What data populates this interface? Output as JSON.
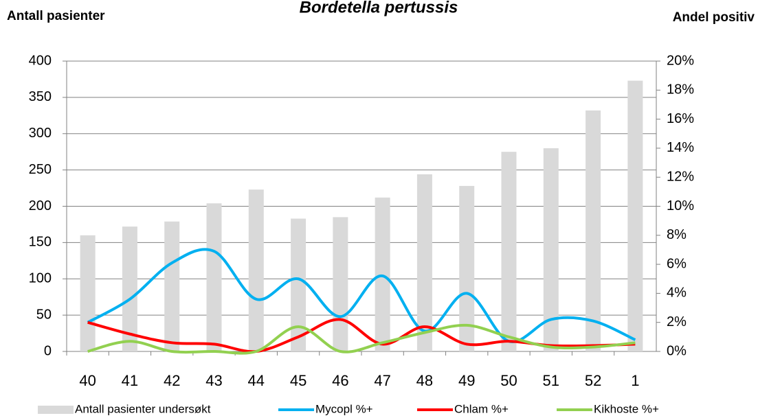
{
  "chart_data": {
    "type": "bar_line",
    "title": "Bordetella pertussis",
    "y_label": "Antall pasienter",
    "y2_label": "Andel positiv",
    "categories": [
      "40",
      "41",
      "42",
      "43",
      "44",
      "45",
      "46",
      "47",
      "48",
      "49",
      "50",
      "51",
      "52",
      "1"
    ],
    "series": [
      {
        "name": "Antall pasienter undersøkt",
        "type": "bar",
        "color": "#d9d9d9",
        "axis": "y",
        "values": [
          160,
          172,
          179,
          204,
          223,
          183,
          185,
          212,
          244,
          228,
          275,
          280,
          332,
          373
        ]
      },
      {
        "name": "Mycopl %+",
        "type": "line",
        "color": "#00b0f0",
        "axis": "y2",
        "values": [
          2.0,
          3.6,
          6.1,
          6.9,
          3.6,
          5.0,
          2.4,
          5.2,
          1.4,
          4.0,
          0.7,
          2.2,
          2.1,
          0.8
        ]
      },
      {
        "name": "Chlam %+",
        "type": "line",
        "color": "#ff0000",
        "axis": "y2",
        "values": [
          2.0,
          1.2,
          0.6,
          0.5,
          0,
          1.0,
          2.2,
          0.5,
          1.7,
          0.5,
          0.7,
          0.4,
          0.4,
          0.5
        ]
      },
      {
        "name": "Kikhoste %+",
        "type": "line",
        "color": "#92d050",
        "axis": "y2",
        "values": [
          0,
          0.7,
          0,
          0,
          0,
          1.7,
          0,
          0.6,
          1.3,
          1.8,
          1.0,
          0.3,
          0.3,
          0.6
        ]
      }
    ],
    "ylim": [
      0,
      400
    ],
    "yticks": [
      0,
      50,
      100,
      150,
      200,
      250,
      300,
      350,
      400
    ],
    "y2lim": [
      0,
      20
    ],
    "y2ticks": [
      {
        "value": 0,
        "label": "0%"
      },
      {
        "value": 2,
        "label": "2%"
      },
      {
        "value": 4,
        "label": "4%"
      },
      {
        "value": 6,
        "label": "6%"
      },
      {
        "value": 8,
        "label": "8%"
      },
      {
        "value": 10,
        "label": "10%"
      },
      {
        "value": 12,
        "label": "12%"
      },
      {
        "value": 14,
        "label": "14%"
      },
      {
        "value": 16,
        "label": "16%"
      },
      {
        "value": 18,
        "label": "18%"
      },
      {
        "value": 20,
        "label": "20%"
      }
    ],
    "grid": true,
    "legend": "bottom"
  }
}
